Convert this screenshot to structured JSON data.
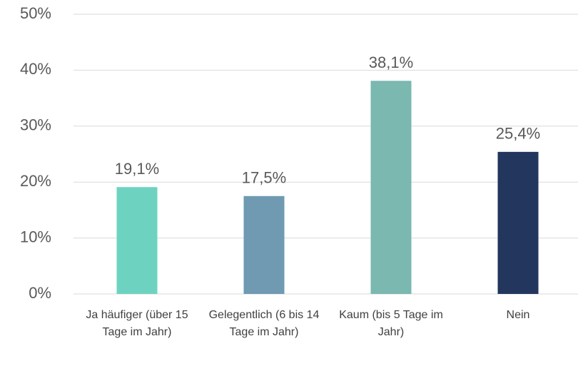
{
  "chart_data": {
    "type": "bar",
    "categories": [
      "Ja häufiger (über 15 Tage im Jahr)",
      "Gelegentlich (6 bis 14 Tage im Jahr)",
      "Kaum (bis 5 Tage im Jahr)",
      "Nein"
    ],
    "values": [
      19.1,
      17.5,
      38.1,
      25.4
    ],
    "value_labels": [
      "19,1%",
      "17,5%",
      "38,1%",
      "25,4%"
    ],
    "colors": [
      "#6dd3c0",
      "#6f9ab2",
      "#7ab8b0",
      "#22365e"
    ],
    "ylim": [
      0,
      50
    ],
    "yticks": [
      {
        "value": 0,
        "label": "0%"
      },
      {
        "value": 10,
        "label": "10%"
      },
      {
        "value": 20,
        "label": "20%"
      },
      {
        "value": 30,
        "label": "30%"
      },
      {
        "value": 40,
        "label": "40%"
      },
      {
        "value": 50,
        "label": "50%"
      }
    ],
    "grid": true
  }
}
